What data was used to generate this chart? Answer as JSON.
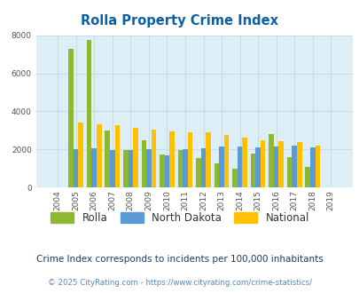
{
  "title": "Rolla Property Crime Index",
  "years": [
    "2004",
    "2005",
    "2006",
    "2007",
    "2008",
    "2009",
    "2010",
    "2011",
    "2012",
    "2013",
    "2014",
    "2015",
    "2016",
    "2017",
    "2018",
    "2019"
  ],
  "rolla": [
    0,
    7300,
    7750,
    3000,
    1950,
    2500,
    1750,
    1950,
    1550,
    1250,
    1000,
    1800,
    2800,
    1600,
    1100,
    0
  ],
  "north_dakota": [
    0,
    2000,
    2050,
    1950,
    1950,
    2000,
    1700,
    2000,
    2050,
    2150,
    2150,
    2100,
    2150,
    2200,
    2100,
    0
  ],
  "national": [
    0,
    3400,
    3300,
    3250,
    3150,
    3050,
    2950,
    2900,
    2900,
    2750,
    2600,
    2500,
    2450,
    2400,
    2200,
    0
  ],
  "rolla_color": "#8db832",
  "nd_color": "#5b9bd5",
  "national_color": "#ffc000",
  "bg_color": "#ddeef6",
  "ylim": [
    0,
    8000
  ],
  "yticks": [
    0,
    2000,
    4000,
    6000,
    8000
  ],
  "grid_color": "#c8dce8",
  "subtitle": "Crime Index corresponds to incidents per 100,000 inhabitants",
  "footer": "© 2025 CityRating.com - https://www.cityrating.com/crime-statistics/",
  "title_color": "#1060a0",
  "subtitle_color": "#1a3a6a",
  "footer_color": "#5588bb",
  "bar_width": 0.27,
  "legend_labels": [
    "Rolla",
    "North Dakota",
    "National"
  ]
}
